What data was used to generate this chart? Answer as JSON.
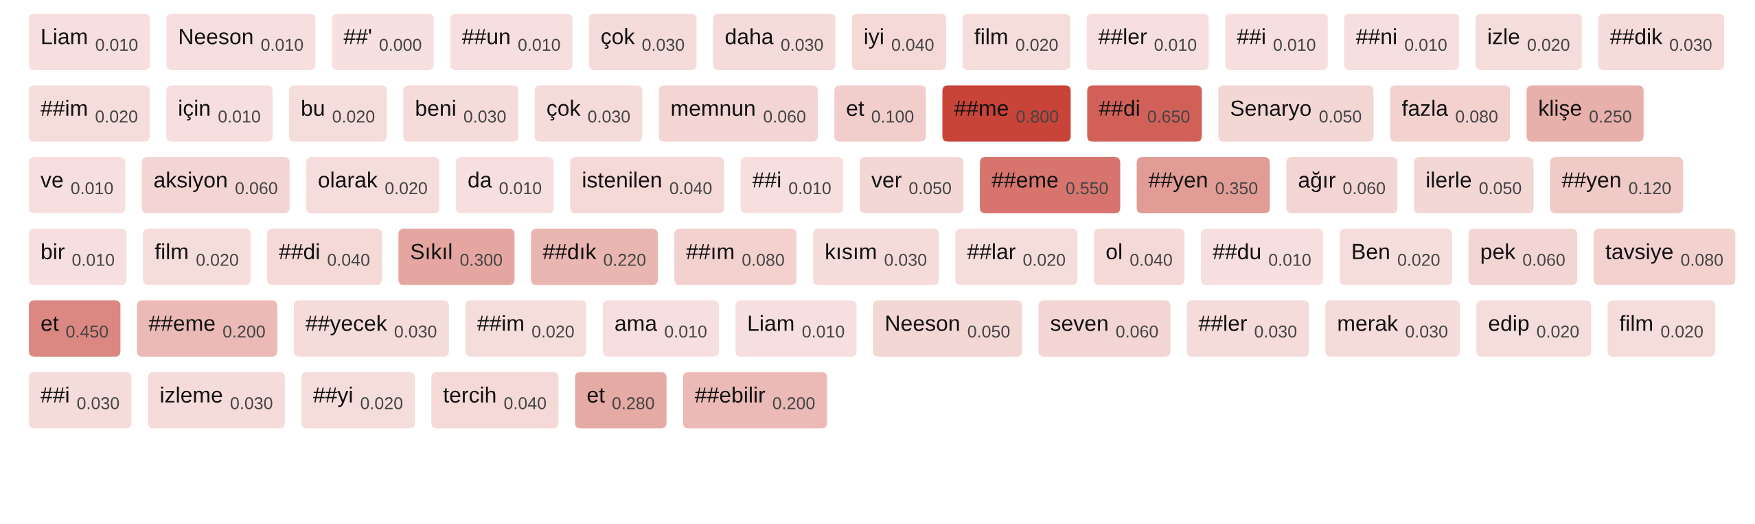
{
  "chart_data": {
    "type": "other",
    "categories": [
      "Liam",
      "Neeson",
      "##'",
      "##un",
      "çok",
      "daha",
      "iyi",
      "film",
      "##ler",
      "##i",
      "##ni",
      "izle",
      "##dik",
      "##im",
      "için",
      "bu",
      "beni",
      "çok",
      "memnun",
      "et",
      "##me",
      "##di",
      "Senaryo",
      "fazla",
      "klişe",
      "ve",
      "aksiyon",
      "olarak",
      "da",
      "istenilen",
      "##i",
      "ver",
      "##eme",
      "##yen",
      "ağır",
      "ilerle",
      "##yen",
      "bir",
      "film",
      "##di",
      "Sıkıl",
      "##dık",
      "##ım",
      "kısım",
      "##lar",
      "ol",
      "##du",
      "Ben",
      "pek",
      "tavsiye",
      "et",
      "##eme",
      "##yecek",
      "##im",
      "ama",
      "Liam",
      "Neeson",
      "seven",
      "##ler",
      "merak",
      "edip",
      "film",
      "##i",
      "izleme",
      "##yi",
      "tercih",
      "et",
      "##ebilir"
    ],
    "values": [
      0.01,
      0.01,
      0.0,
      0.01,
      0.03,
      0.03,
      0.04,
      0.02,
      0.01,
      0.01,
      0.01,
      0.02,
      0.03,
      0.02,
      0.01,
      0.02,
      0.03,
      0.03,
      0.06,
      0.1,
      0.8,
      0.65,
      0.05,
      0.08,
      0.25,
      0.01,
      0.06,
      0.02,
      0.01,
      0.04,
      0.01,
      0.05,
      0.55,
      0.35,
      0.06,
      0.05,
      0.12,
      0.01,
      0.02,
      0.04,
      0.3,
      0.22,
      0.08,
      0.03,
      0.02,
      0.04,
      0.01,
      0.02,
      0.06,
      0.08,
      0.45,
      0.2,
      0.03,
      0.02,
      0.01,
      0.01,
      0.05,
      0.06,
      0.03,
      0.03,
      0.02,
      0.02,
      0.03,
      0.03,
      0.02,
      0.04,
      0.28,
      0.2
    ],
    "value_labels": [
      "0.010",
      "0.010",
      "0.000",
      "0.010",
      "0.030",
      "0.030",
      "0.040",
      "0.020",
      "0.010",
      "0.010",
      "0.010",
      "0.020",
      "0.030",
      "0.020",
      "0.010",
      "0.020",
      "0.030",
      "0.030",
      "0.060",
      "0.100",
      "0.800",
      "0.650",
      "0.050",
      "0.080",
      "0.250",
      "0.010",
      "0.060",
      "0.020",
      "0.010",
      "0.040",
      "0.010",
      "0.050",
      "0.550",
      "0.350",
      "0.060",
      "0.050",
      "0.120",
      "0.010",
      "0.020",
      "0.040",
      "0.300",
      "0.220",
      "0.080",
      "0.030",
      "0.020",
      "0.040",
      "0.010",
      "0.020",
      "0.060",
      "0.080",
      "0.450",
      "0.200",
      "0.030",
      "0.020",
      "0.010",
      "0.010",
      "0.050",
      "0.060",
      "0.030",
      "0.030",
      "0.020",
      "0.020",
      "0.030",
      "0.030",
      "0.020",
      "0.040",
      "0.280",
      "0.200"
    ]
  }
}
